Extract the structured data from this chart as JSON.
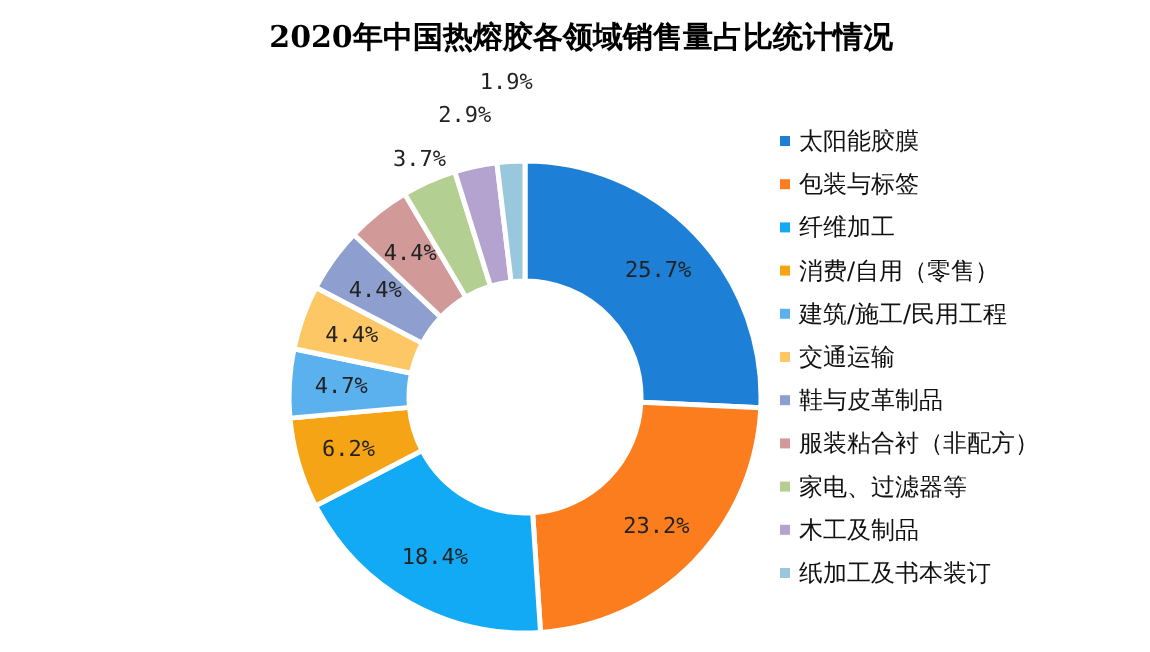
{
  "chart_data": {
    "type": "donut",
    "title": "2020年中国热熔胶各领域销售量占比统计情况",
    "categories": [
      "太阳能胶膜",
      "包装与标签",
      "纤维加工",
      "消费/自用（零售）",
      "建筑/施工/民用工程",
      "交通运输",
      "鞋与皮革制品",
      "服装粘合衬（非配方）",
      "家电、过滤器等",
      "木工及制品",
      "纸加工及书本装订"
    ],
    "values": [
      25.7,
      23.2,
      18.4,
      6.2,
      4.7,
      4.4,
      4.4,
      4.4,
      3.7,
      2.9,
      1.9
    ],
    "value_labels": [
      "25.7%",
      "23.2%",
      "18.4%",
      "6.2%",
      "4.7%",
      "4.4%",
      "4.4%",
      "4.4%",
      "3.7%",
      "2.9%",
      "1.9%"
    ],
    "colors": [
      "#1e7fd6",
      "#fb7d1e",
      "#13aaf5",
      "#f5a416",
      "#5ab1ee",
      "#fdc766",
      "#8e9fcf",
      "#d19a99",
      "#b4cf92",
      "#b4a2cf",
      "#99c8dd"
    ],
    "legend": "right"
  }
}
